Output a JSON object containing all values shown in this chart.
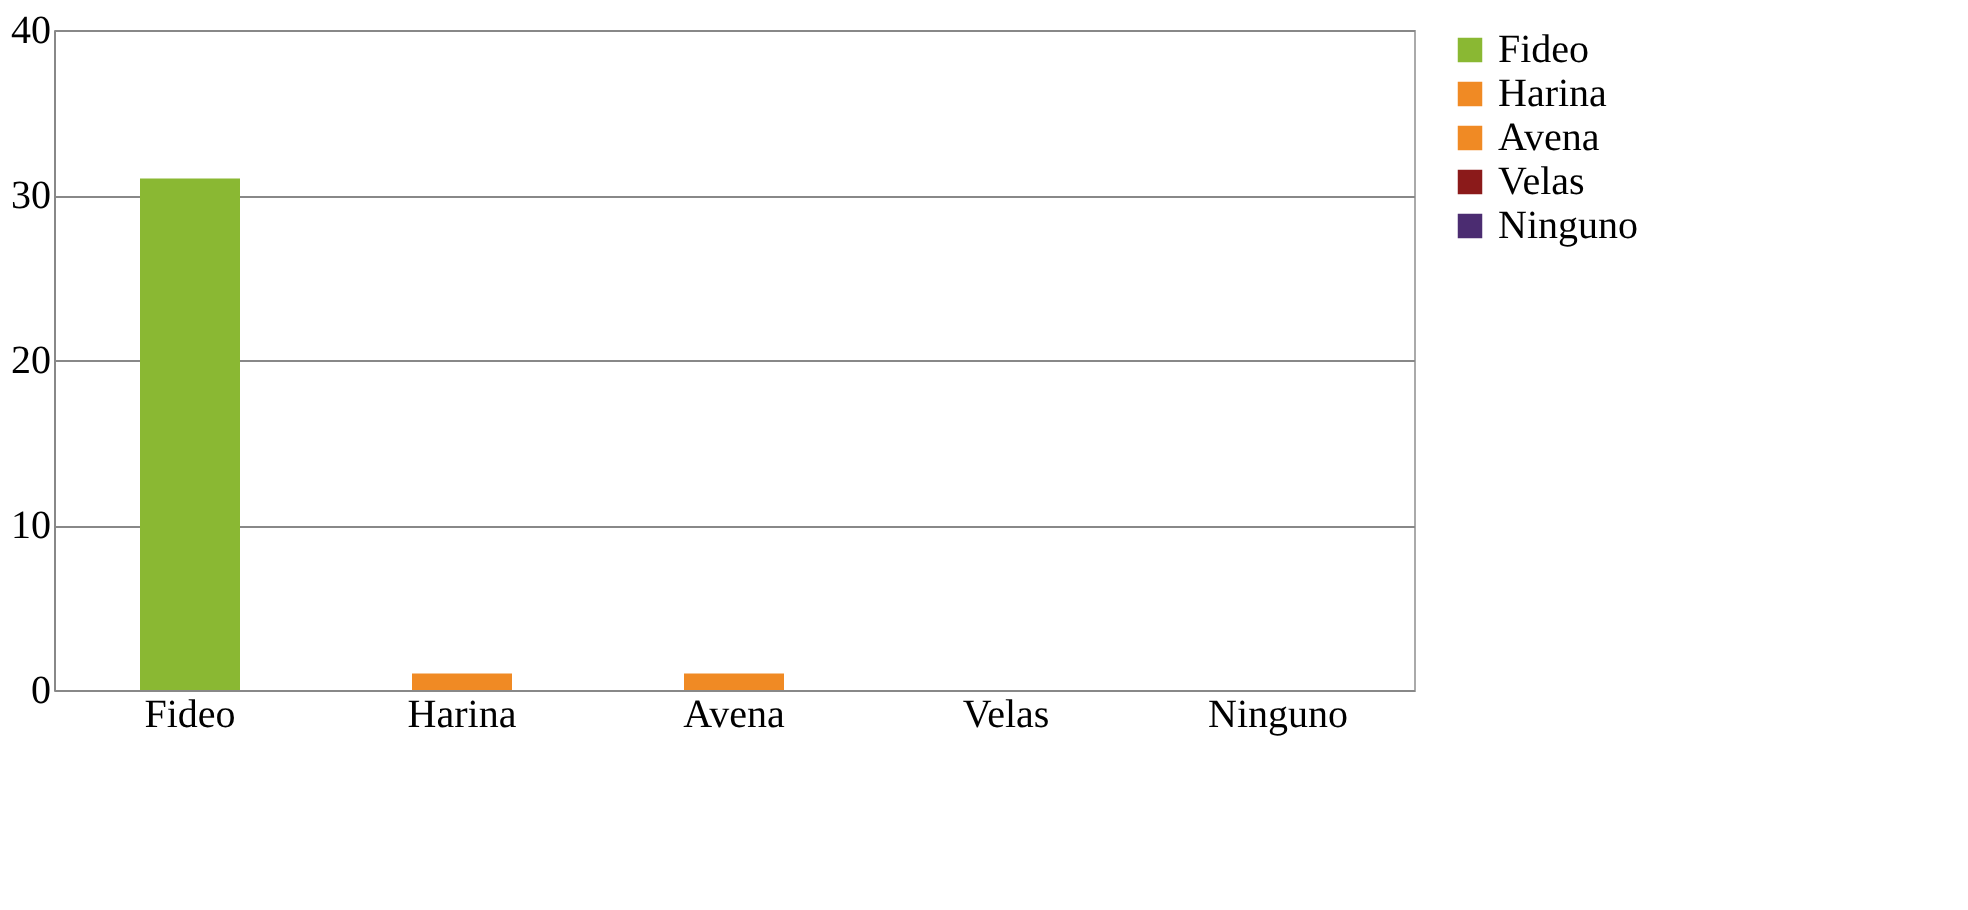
{
  "chart_data": {
    "type": "bar",
    "categories": [
      "Fideo",
      "Harina",
      "Avena",
      "Velas",
      "Ninguno"
    ],
    "series": [
      {
        "name": "Fideo",
        "color": "#8ab833",
        "values": [
          31,
          null,
          null,
          null,
          null
        ]
      },
      {
        "name": "Harina",
        "color": "#f08a24",
        "values": [
          null,
          1,
          null,
          null,
          null
        ]
      },
      {
        "name": "Avena",
        "color": "#f08a24",
        "values": [
          null,
          null,
          1,
          null,
          null
        ]
      },
      {
        "name": "Velas",
        "color": "#8b1a1a",
        "values": [
          null,
          null,
          null,
          0,
          null
        ]
      },
      {
        "name": "Ninguno",
        "color": "#4b2c71",
        "values": [
          null,
          null,
          null,
          null,
          0
        ]
      }
    ],
    "ylim": [
      0,
      40
    ],
    "yticks": [
      0,
      10,
      20,
      30,
      40
    ],
    "grid": "y",
    "legend": "right"
  }
}
